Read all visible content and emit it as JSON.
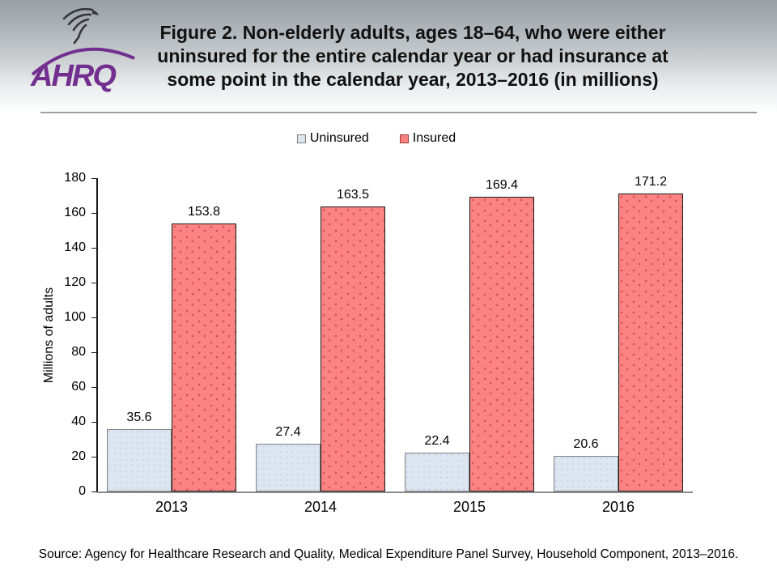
{
  "header": {
    "logo_text": "AHRQ",
    "title_lines": [
      "Figure 2. Non-elderly adults, ages 18–64, who were either",
      "uninsured for the entire calendar year or had insurance at",
      "some point in the calendar year, 2013–2016 (in millions)"
    ]
  },
  "chart_data": {
    "type": "bar",
    "title": "Figure 2. Non-elderly adults, ages 18–64, who were either uninsured for the entire calendar year or had insurance at some point in the calendar year, 2013–2016 (in millions)",
    "categories": [
      "2013",
      "2014",
      "2015",
      "2016"
    ],
    "series": [
      {
        "name": "Uninsured",
        "values": [
          35.6,
          27.4,
          22.4,
          20.6
        ],
        "color": "#dce6f1"
      },
      {
        "name": "Insured",
        "values": [
          153.8,
          163.5,
          169.4,
          171.2
        ],
        "color": "#fb8383"
      }
    ],
    "xlabel": "",
    "ylabel": "Millions of adults",
    "ylim": [
      0,
      180
    ],
    "ytick_step": 20,
    "grid": false,
    "legend_position": "top",
    "data_labels": true
  },
  "source": "Source: Agency for Healthcare Research and Quality, Medical Expenditure Panel Survey, Household Component, 2013–2016.",
  "colors": {
    "uninsured_fill": "#dce6f1",
    "uninsured_border": "#7f7f7f",
    "insured_fill": "#fb8383",
    "insured_border": "#1a1a1a",
    "brand_purple": "#722f8f",
    "header_gradient_top": "#98a0a6",
    "divider_gray": "#9b9fa2"
  }
}
